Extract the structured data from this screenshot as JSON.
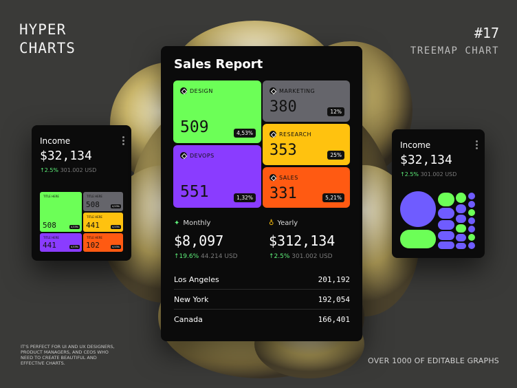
{
  "brand": {
    "line1": "HYPER",
    "line2": "CHARTS"
  },
  "issue": {
    "number": "#17",
    "subtitle": "TREEMAP CHART"
  },
  "footnote": "IT'S PERFECT FOR UI AND UX DESIGNERS, PRODUCT MANAGERS, AND CEOS WHO NEED TO CREATE BEAUTIFUL AND EFFECTIVE CHARTS.",
  "tagline": "OVER 1000 OF EDITABLE GRAPHS",
  "main": {
    "title": "Sales Report",
    "tiles": [
      {
        "label": "DESIGN",
        "value": "509",
        "pct": "4,53%",
        "color": "#6cff57"
      },
      {
        "label": "DEVOPS",
        "value": "551",
        "pct": "1,32%",
        "color": "#8a3cff"
      },
      {
        "label": "MARKETING",
        "value": "380",
        "pct": "12%",
        "color": "#65656b"
      },
      {
        "label": "RESEARCH",
        "value": "353",
        "pct": "25%",
        "color": "#ffc20f"
      },
      {
        "label": "SALES",
        "value": "331",
        "pct": "5,21%",
        "color": "#ff5a12"
      }
    ],
    "monthly": {
      "label": "Monthly",
      "value": "$8,097",
      "change": "19.6%",
      "sub": "44.214 USD"
    },
    "yearly": {
      "label": "Yearly",
      "value": "$312,134",
      "change": "2.5%",
      "sub": "301.002 USD"
    },
    "table": [
      {
        "city": "Los Angeles",
        "value": "201,192"
      },
      {
        "city": "New York",
        "value": "192,054"
      },
      {
        "city": "Canada",
        "value": "166,401"
      }
    ]
  },
  "left_card": {
    "title": "Income",
    "value": "$32,134",
    "change": "2.5%",
    "sub": "301.002 USD",
    "tiles": [
      {
        "label": "TITLE HERE",
        "value": "508",
        "pct": "4,53%",
        "color": "#6cff57"
      },
      {
        "label": "TITLE HERE",
        "value": "508",
        "pct": "4,53%",
        "color": "#65656b"
      },
      {
        "label": "TITLE HERE",
        "value": "441",
        "pct": "4,53%",
        "color": "#ffc20f"
      },
      {
        "label": "TITLE HERE",
        "value": "441",
        "pct": "4,53%",
        "color": "#8a3cff"
      },
      {
        "label": "TITLE HERE",
        "value": "102",
        "pct": "4,53%",
        "color": "#ff5a12"
      }
    ]
  },
  "right_card": {
    "title": "Income",
    "value": "$32,134",
    "change": "2.5%",
    "sub": "301.002 USD"
  },
  "colors": {
    "green": "#6cff57",
    "purple": "#6f5cff",
    "up": "#5ef07a"
  }
}
